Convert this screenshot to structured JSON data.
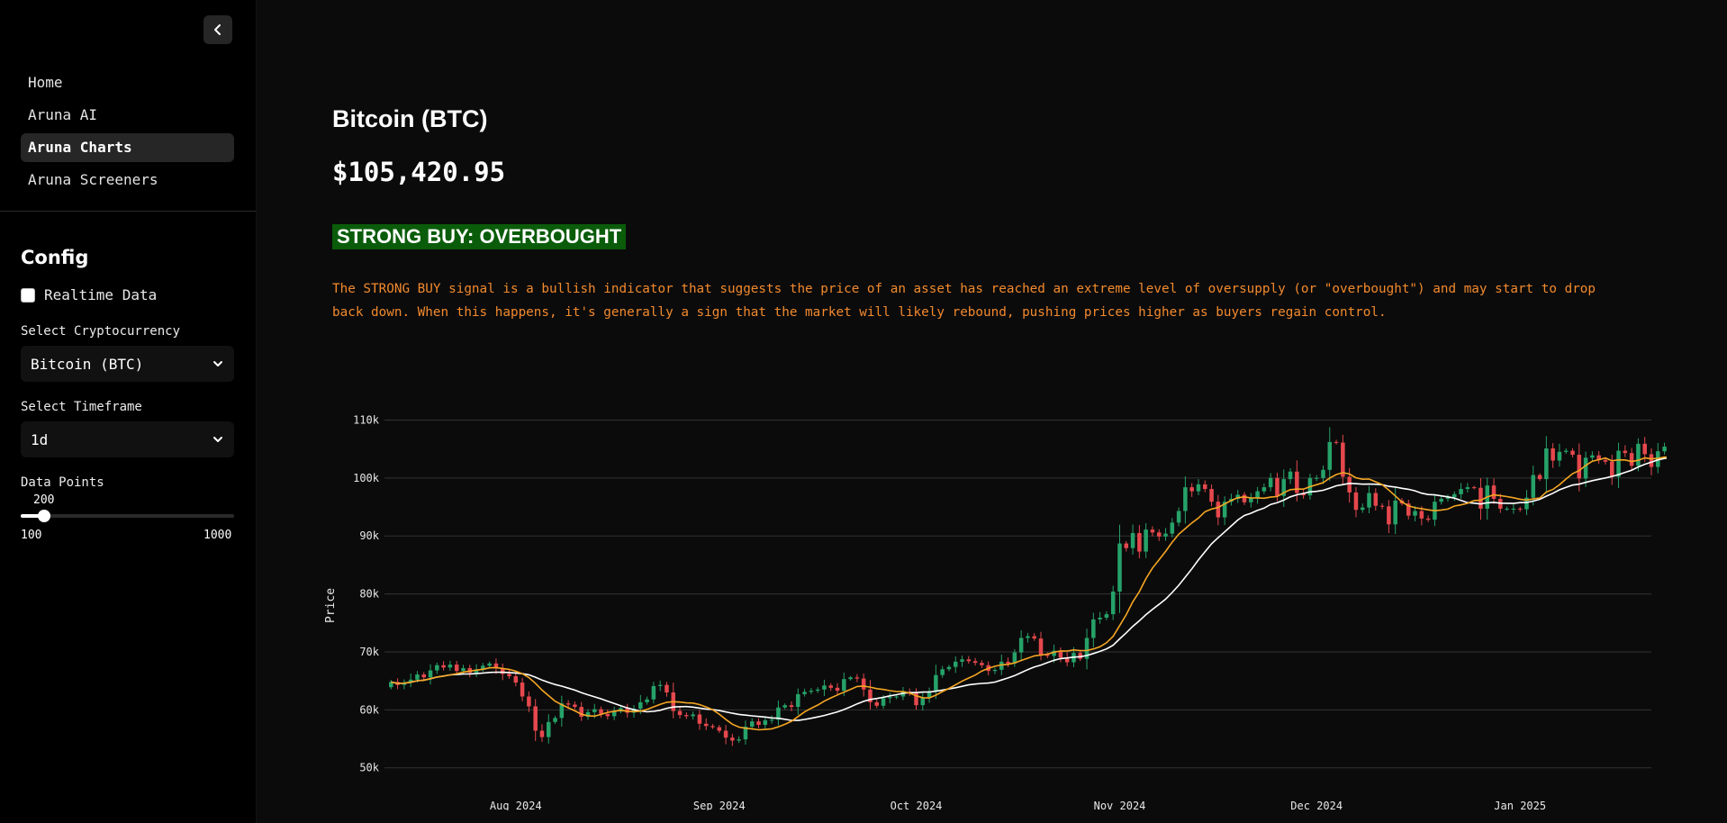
{
  "sidebar": {
    "collapse_icon": "chevron-left-icon",
    "nav": [
      "Home",
      "Aruna AI",
      "Aruna Charts",
      "Aruna Screeners"
    ],
    "active_nav": "Aruna Charts",
    "config_title": "Config",
    "realtime_label": "Realtime Data",
    "realtime_checked": false,
    "crypto_label": "Select Cryptocurrency",
    "crypto_value": "Bitcoin (BTC)",
    "timeframe_label": "Select Timeframe",
    "timeframe_value": "1d",
    "datapoints_label": "Data Points",
    "datapoints_value": "200",
    "datapoints_min": "100",
    "datapoints_max": "1000",
    "datapoints_fraction": 0.111
  },
  "main": {
    "title": "Bitcoin (BTC)",
    "price": "$105,420.95",
    "signal": "STRONG BUY: OVERBOUGHT",
    "signal_description": "The STRONG BUY signal is a bullish indicator that suggests the price of an asset has reached an extreme level of oversupply (or \"overbought\") and may start to drop back down. When this happens, it's generally a sign that the market will likely rebound, pushing prices higher as buyers regain control."
  },
  "colors": {
    "up": "#26a269",
    "down": "#e5484d",
    "ma_fast": "#f5a623",
    "ma_slow": "#ffffff",
    "signal_bg": "#0a5c0a",
    "description": "#f28a2e"
  },
  "chart_data": {
    "type": "candlestick",
    "ylabel": "Price",
    "ylim": [
      47000,
      111000
    ],
    "yticks": [
      {
        "value": 50000,
        "label": "50k"
      },
      {
        "value": 60000,
        "label": "60k"
      },
      {
        "value": 70000,
        "label": "70k"
      },
      {
        "value": 80000,
        "label": "80k"
      },
      {
        "value": 90000,
        "label": "90k"
      },
      {
        "value": 100000,
        "label": "100k"
      },
      {
        "value": 110000,
        "label": "110k"
      }
    ],
    "xlim": [
      "2024-07-12",
      "2025-01-21"
    ],
    "xticks": [
      {
        "date": "2024-08-01",
        "label": "Aug 2024"
      },
      {
        "date": "2024-09-01",
        "label": "Sep 2024"
      },
      {
        "date": "2024-10-01",
        "label": "Oct 2024"
      },
      {
        "date": "2024-11-01",
        "label": "Nov 2024"
      },
      {
        "date": "2024-12-01",
        "label": "Dec 2024"
      },
      {
        "date": "2025-01-01",
        "label": "Jan 2025"
      }
    ],
    "series_start": "2024-07-13",
    "closes": [
      64800,
      64300,
      64700,
      65200,
      66100,
      65600,
      66800,
      67700,
      67300,
      67800,
      66700,
      67200,
      66400,
      66900,
      67600,
      68000,
      67200,
      66200,
      65800,
      64700,
      62300,
      60600,
      56400,
      55300,
      57900,
      58600,
      61100,
      60900,
      60500,
      58800,
      59600,
      60100,
      59300,
      58900,
      59700,
      60300,
      59500,
      60200,
      61300,
      61800,
      64100,
      64300,
      63000,
      59800,
      59100,
      58900,
      59200,
      57600,
      57200,
      57000,
      56400,
      55200,
      54700,
      54900,
      57100,
      58000,
      57400,
      58200,
      58300,
      60400,
      60800,
      60500,
      62700,
      63100,
      63300,
      63500,
      64200,
      63800,
      63300,
      65300,
      65600,
      65400,
      63500,
      61300,
      60700,
      62000,
      62200,
      62300,
      63100,
      62900,
      60800,
      62100,
      63200,
      66000,
      67000,
      67400,
      68300,
      68700,
      68400,
      68100,
      67700,
      66700,
      66900,
      68300,
      68000,
      69900,
      72400,
      72700,
      72300,
      69500,
      69300,
      70200,
      69000,
      68200,
      69800,
      68800,
      72400,
      75600,
      75900,
      76500,
      80400,
      88700,
      87900,
      90500,
      87300,
      91100,
      90600,
      89900,
      90400,
      92300,
      94300,
      98400,
      97700,
      98900,
      98100,
      95900,
      93200,
      95900,
      96400,
      97100,
      95800,
      96600,
      97700,
      98400,
      100000,
      96900,
      99800,
      101100,
      97400,
      97000,
      100000,
      100000,
      101400,
      106200,
      106100,
      100200,
      97500,
      94500,
      94900,
      97400,
      95200,
      95100,
      92000,
      96100,
      95600,
      93500,
      94300,
      93000,
      92800,
      95900,
      96400,
      96700,
      97200,
      98100,
      98400,
      98300,
      94700,
      98700,
      96400,
      94700,
      94700,
      94700,
      94600,
      96600,
      100500,
      99800,
      105100,
      103000,
      104500,
      104700,
      104000,
      99900,
      103500,
      103900,
      103100,
      102800,
      100200,
      104700,
      104300,
      102100,
      105900,
      104100,
      101900,
      104600,
      105400,
      102200,
      101000,
      105400
    ]
  }
}
